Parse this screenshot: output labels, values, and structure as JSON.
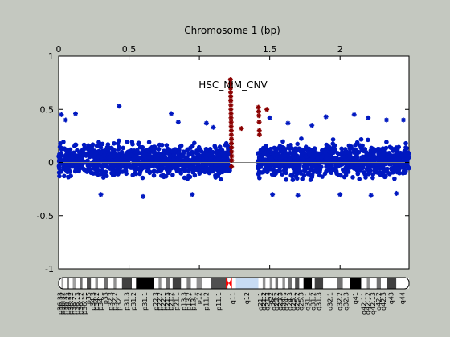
{
  "chart_data": {
    "type": "scatter",
    "title": "Chromosome 1 (bp)",
    "annotation": "HSC_NIM_CNV",
    "x_axis": {
      "position": "top",
      "range": [
        0,
        2.49
      ],
      "ticks": [
        0,
        0.5,
        1,
        1.5,
        2
      ],
      "tick_labels": [
        "0",
        "0.5",
        "1",
        "1.5",
        "2"
      ]
    },
    "y_axis": {
      "range": [
        -1,
        1
      ],
      "ticks": [
        -1,
        -0.5,
        0,
        0.5,
        1
      ],
      "tick_labels": [
        "-1",
        "-0.5",
        "0",
        "0.5",
        "1"
      ]
    },
    "gap": [
      1.245,
      1.415
    ],
    "series": [
      {
        "color": "#0018c0",
        "description_ranges": [
          [
            0,
            1.22
          ],
          [
            1.415,
            2.49
          ]
        ],
        "typical_band": [
          -0.2,
          0.25
        ],
        "outliers": [
          {
            "x": 0.02,
            "y": 0.45
          },
          {
            "x": 0.05,
            "y": 0.4
          },
          {
            "x": 0.12,
            "y": 0.46
          },
          {
            "x": 0.43,
            "y": 0.53
          },
          {
            "x": 0.8,
            "y": 0.46
          },
          {
            "x": 0.85,
            "y": 0.38
          },
          {
            "x": 1.05,
            "y": 0.37
          },
          {
            "x": 1.1,
            "y": 0.33
          },
          {
            "x": 0.3,
            "y": -0.3
          },
          {
            "x": 0.6,
            "y": -0.32
          },
          {
            "x": 0.95,
            "y": -0.3
          },
          {
            "x": 1.5,
            "y": 0.42
          },
          {
            "x": 1.63,
            "y": 0.37
          },
          {
            "x": 1.8,
            "y": 0.35
          },
          {
            "x": 1.9,
            "y": 0.43
          },
          {
            "x": 2.1,
            "y": 0.45
          },
          {
            "x": 2.2,
            "y": 0.42
          },
          {
            "x": 2.33,
            "y": 0.4
          },
          {
            "x": 2.45,
            "y": 0.4
          },
          {
            "x": 1.52,
            "y": -0.3
          },
          {
            "x": 1.7,
            "y": -0.31
          },
          {
            "x": 2.0,
            "y": -0.3
          },
          {
            "x": 2.22,
            "y": -0.31
          },
          {
            "x": 2.4,
            "y": -0.29
          }
        ]
      },
      {
        "color": "#8b0000",
        "points": [
          {
            "x": 1.221,
            "y": 0.78
          },
          {
            "x": 1.221,
            "y": 0.74
          },
          {
            "x": 1.222,
            "y": 0.7
          },
          {
            "x": 1.222,
            "y": 0.66
          },
          {
            "x": 1.223,
            "y": 0.62
          },
          {
            "x": 1.223,
            "y": 0.58
          },
          {
            "x": 1.224,
            "y": 0.54
          },
          {
            "x": 1.224,
            "y": 0.5
          },
          {
            "x": 1.225,
            "y": 0.46
          },
          {
            "x": 1.225,
            "y": 0.42
          },
          {
            "x": 1.226,
            "y": 0.38
          },
          {
            "x": 1.226,
            "y": 0.34
          },
          {
            "x": 1.227,
            "y": 0.3
          },
          {
            "x": 1.227,
            "y": 0.26
          },
          {
            "x": 1.228,
            "y": 0.22
          },
          {
            "x": 1.228,
            "y": 0.18
          },
          {
            "x": 1.229,
            "y": 0.14
          },
          {
            "x": 1.229,
            "y": 0.1
          },
          {
            "x": 1.23,
            "y": 0.06
          },
          {
            "x": 1.23,
            "y": 0.02
          },
          {
            "x": 1.229,
            "y": -0.04
          },
          {
            "x": 1.3,
            "y": 0.32
          },
          {
            "x": 1.42,
            "y": 0.52
          },
          {
            "x": 1.422,
            "y": 0.48
          },
          {
            "x": 1.423,
            "y": 0.44
          },
          {
            "x": 1.425,
            "y": 0.38
          },
          {
            "x": 1.426,
            "y": 0.3
          },
          {
            "x": 1.427,
            "y": 0.26
          },
          {
            "x": 1.48,
            "y": 0.5
          }
        ]
      }
    ],
    "reference_line": {
      "y": 0,
      "color": "#808080"
    }
  },
  "ideogram": {
    "bands": [
      {
        "name": "p36.33",
        "start": 0.0,
        "end": 0.02,
        "color": "#ffffff"
      },
      {
        "name": "p36.32",
        "start": 0.02,
        "end": 0.035,
        "color": "#a0a0a0"
      },
      {
        "name": "p36.31",
        "start": 0.035,
        "end": 0.06,
        "color": "#ffffff"
      },
      {
        "name": "p36.23",
        "start": 0.06,
        "end": 0.075,
        "color": "#808080"
      },
      {
        "name": "p36.22",
        "start": 0.075,
        "end": 0.1,
        "color": "#ffffff"
      },
      {
        "name": "p36.21",
        "start": 0.1,
        "end": 0.12,
        "color": "#a0a0a0"
      },
      {
        "name": "p36.13",
        "start": 0.12,
        "end": 0.15,
        "color": "#ffffff"
      },
      {
        "name": "p36.12",
        "start": 0.15,
        "end": 0.17,
        "color": "#707070"
      },
      {
        "name": "p36.11",
        "start": 0.17,
        "end": 0.2,
        "color": "#ffffff"
      },
      {
        "name": "p35",
        "start": 0.2,
        "end": 0.23,
        "color": "#505050"
      },
      {
        "name": "p34.3",
        "start": 0.23,
        "end": 0.26,
        "color": "#ffffff"
      },
      {
        "name": "p34.2",
        "start": 0.26,
        "end": 0.28,
        "color": "#909090"
      },
      {
        "name": "p34.1",
        "start": 0.28,
        "end": 0.32,
        "color": "#ffffff"
      },
      {
        "name": "p33",
        "start": 0.32,
        "end": 0.35,
        "color": "#707070"
      },
      {
        "name": "p32.3",
        "start": 0.35,
        "end": 0.39,
        "color": "#ffffff"
      },
      {
        "name": "p32.2",
        "start": 0.39,
        "end": 0.41,
        "color": "#909090"
      },
      {
        "name": "p32.1",
        "start": 0.41,
        "end": 0.45,
        "color": "#ffffff"
      },
      {
        "name": "p31.3",
        "start": 0.45,
        "end": 0.52,
        "color": "#404040"
      },
      {
        "name": "p31.2",
        "start": 0.52,
        "end": 0.55,
        "color": "#ffffff"
      },
      {
        "name": "p31.1",
        "start": 0.55,
        "end": 0.68,
        "color": "#000000"
      },
      {
        "name": "p22.3",
        "start": 0.68,
        "end": 0.71,
        "color": "#ffffff"
      },
      {
        "name": "p22.2",
        "start": 0.71,
        "end": 0.73,
        "color": "#909090"
      },
      {
        "name": "p22.1",
        "start": 0.73,
        "end": 0.76,
        "color": "#ffffff"
      },
      {
        "name": "p21.3",
        "start": 0.76,
        "end": 0.79,
        "color": "#707070"
      },
      {
        "name": "p21.2",
        "start": 0.79,
        "end": 0.81,
        "color": "#ffffff"
      },
      {
        "name": "p21.1",
        "start": 0.81,
        "end": 0.87,
        "color": "#404040"
      },
      {
        "name": "p13.3",
        "start": 0.87,
        "end": 0.91,
        "color": "#ffffff"
      },
      {
        "name": "p13.2",
        "start": 0.91,
        "end": 0.94,
        "color": "#808080"
      },
      {
        "name": "p13.1",
        "start": 0.94,
        "end": 0.98,
        "color": "#ffffff"
      },
      {
        "name": "p12",
        "start": 0.98,
        "end": 1.02,
        "color": "#909090"
      },
      {
        "name": "p11.2",
        "start": 1.02,
        "end": 1.08,
        "color": "#ffffff"
      },
      {
        "name": "p11.1",
        "start": 1.08,
        "end": 1.2,
        "color": "#505050"
      },
      {
        "name": "q11",
        "start": 1.22,
        "end": 1.26,
        "color": "#ffffff"
      },
      {
        "name": "q12",
        "start": 1.26,
        "end": 1.42,
        "color": "#c8dcf4"
      },
      {
        "name": "q21.1",
        "start": 1.42,
        "end": 1.45,
        "color": "#ffffff"
      },
      {
        "name": "q21.2",
        "start": 1.45,
        "end": 1.47,
        "color": "#909090"
      },
      {
        "name": "q21.3",
        "start": 1.47,
        "end": 1.5,
        "color": "#ffffff"
      },
      {
        "name": "q22",
        "start": 1.5,
        "end": 1.52,
        "color": "#909090"
      },
      {
        "name": "q23.1",
        "start": 1.52,
        "end": 1.54,
        "color": "#ffffff"
      },
      {
        "name": "q23.2",
        "start": 1.54,
        "end": 1.56,
        "color": "#707070"
      },
      {
        "name": "q23.3",
        "start": 1.56,
        "end": 1.59,
        "color": "#ffffff"
      },
      {
        "name": "q24.1",
        "start": 1.59,
        "end": 1.61,
        "color": "#909090"
      },
      {
        "name": "q24.2",
        "start": 1.61,
        "end": 1.63,
        "color": "#ffffff"
      },
      {
        "name": "q24.3",
        "start": 1.63,
        "end": 1.66,
        "color": "#707070"
      },
      {
        "name": "q25.1",
        "start": 1.66,
        "end": 1.68,
        "color": "#ffffff"
      },
      {
        "name": "q25.2",
        "start": 1.68,
        "end": 1.71,
        "color": "#505050"
      },
      {
        "name": "q25.3",
        "start": 1.71,
        "end": 1.74,
        "color": "#ffffff"
      },
      {
        "name": "q31.1",
        "start": 1.74,
        "end": 1.8,
        "color": "#000000"
      },
      {
        "name": "q31.2",
        "start": 1.8,
        "end": 1.82,
        "color": "#ffffff"
      },
      {
        "name": "q31.3",
        "start": 1.82,
        "end": 1.88,
        "color": "#404040"
      },
      {
        "name": "q32.1",
        "start": 1.88,
        "end": 1.98,
        "color": "#ffffff"
      },
      {
        "name": "q32.2",
        "start": 1.98,
        "end": 2.02,
        "color": "#707070"
      },
      {
        "name": "q32.3",
        "start": 2.02,
        "end": 2.07,
        "color": "#ffffff"
      },
      {
        "name": "q41",
        "start": 2.07,
        "end": 2.15,
        "color": "#000000"
      },
      {
        "name": "q42.11",
        "start": 2.15,
        "end": 2.19,
        "color": "#ffffff"
      },
      {
        "name": "q42.12",
        "start": 2.19,
        "end": 2.21,
        "color": "#909090"
      },
      {
        "name": "q42.13",
        "start": 2.21,
        "end": 2.26,
        "color": "#ffffff"
      },
      {
        "name": "q42.2",
        "start": 2.26,
        "end": 2.29,
        "color": "#707070"
      },
      {
        "name": "q42.3",
        "start": 2.29,
        "end": 2.33,
        "color": "#ffffff"
      },
      {
        "name": "q43",
        "start": 2.33,
        "end": 2.4,
        "color": "#404040"
      },
      {
        "name": "q44",
        "start": 2.4,
        "end": 2.49,
        "color": "#ffffff"
      }
    ],
    "centromere": {
      "start": 1.2,
      "end": 1.22,
      "color": "#ff0000"
    }
  }
}
